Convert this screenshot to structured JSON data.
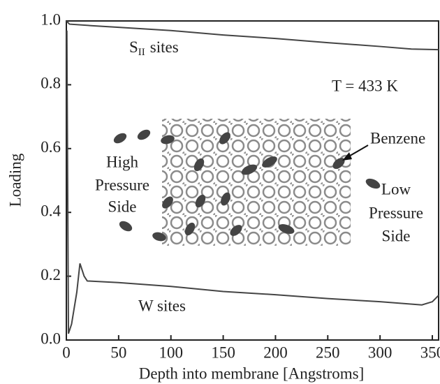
{
  "chart_data": {
    "type": "line",
    "x_label": "Depth into membrane [Angstroms]",
    "y_label": "Loading",
    "xlim": [
      0,
      356
    ],
    "ylim": [
      0,
      1
    ],
    "xticks": [
      0,
      50,
      100,
      150,
      200,
      250,
      300,
      350
    ],
    "yticks": [
      {
        "value": 0,
        "label": "0.0"
      },
      {
        "value": 0.2,
        "label": "0.2"
      },
      {
        "value": 0.4,
        "label": "0.4"
      },
      {
        "value": 0.6,
        "label": "0.6"
      },
      {
        "value": 0.8,
        "label": "0.8"
      },
      {
        "value": 1,
        "label": "1.0"
      }
    ],
    "series": [
      {
        "color": "#444",
        "x": [
          0,
          3,
          25,
          50,
          100,
          150,
          200,
          250,
          300,
          330,
          356
        ],
        "values": [
          1.0,
          0.99,
          0.985,
          0.98,
          0.97,
          0.956,
          0.945,
          0.932,
          0.92,
          0.912,
          0.91
        ]
      },
      {
        "color": "#444",
        "x": [
          0.5,
          2,
          5,
          10,
          13,
          17,
          20,
          50,
          100,
          150,
          200,
          250,
          300,
          340,
          350,
          356
        ],
        "values": [
          0.97,
          0.02,
          0.05,
          0.15,
          0.24,
          0.2,
          0.185,
          0.18,
          0.168,
          0.152,
          0.142,
          0.13,
          0.12,
          0.11,
          0.12,
          0.14
        ]
      }
    ],
    "annotations": {
      "s_sites": {
        "main": "S",
        "sub": "II",
        "rest": "sites"
      },
      "temperature": "T = 433 K",
      "benzene": "Benzene",
      "high": [
        "High",
        "Pressure",
        "Side"
      ],
      "low": [
        "Low",
        "Pressure",
        "Side"
      ],
      "w_sites": "W sites"
    }
  }
}
